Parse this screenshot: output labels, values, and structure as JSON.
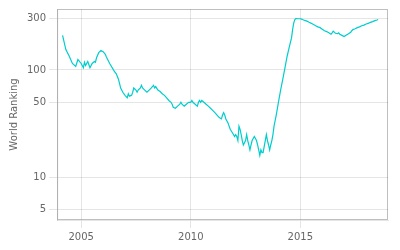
{
  "chart_data": {
    "type": "line",
    "ylabel": "World Ranking",
    "color": "#00CDCD",
    "log": "y",
    "grid": true,
    "xlim": [
      2003.9,
      2019.0
    ],
    "ylim": [
      4.0,
      370
    ],
    "xticks": [
      2005,
      2010,
      2015
    ],
    "yticks": [
      5,
      10,
      50,
      100,
      300
    ],
    "x": [
      2004.15,
      2004.3,
      2004.45,
      2004.6,
      2004.75,
      2004.85,
      2005.0,
      2005.1,
      2005.15,
      2005.2,
      2005.3,
      2005.4,
      2005.5,
      2005.6,
      2005.65,
      2005.7,
      2005.8,
      2005.9,
      2006.0,
      2006.1,
      2006.15,
      2006.3,
      2006.5,
      2006.6,
      2006.7,
      2006.8,
      2006.9,
      2007.0,
      2007.1,
      2007.15,
      2007.2,
      2007.3,
      2007.35,
      2007.4,
      2007.5,
      2007.55,
      2007.6,
      2007.7,
      2007.75,
      2007.8,
      2007.9,
      2008.0,
      2008.1,
      2008.2,
      2008.3,
      2008.35,
      2008.4,
      2008.5,
      2008.6,
      2008.7,
      2008.8,
      2008.9,
      2009.0,
      2009.1,
      2009.15,
      2009.2,
      2009.3,
      2009.4,
      2009.5,
      2009.55,
      2009.6,
      2009.7,
      2009.8,
      2009.9,
      2010.0,
      2010.05,
      2010.1,
      2010.2,
      2010.3,
      2010.35,
      2010.4,
      2010.45,
      2010.5,
      2010.6,
      2010.7,
      2010.8,
      2010.9,
      2011.0,
      2011.1,
      2011.2,
      2011.3,
      2011.4,
      2011.45,
      2011.5,
      2011.55,
      2011.6,
      2011.7,
      2011.75,
      2011.8,
      2011.9,
      2012.0,
      2012.05,
      2012.1,
      2012.15,
      2012.2,
      2012.25,
      2012.3,
      2012.35,
      2012.4,
      2012.5,
      2012.55,
      2012.6,
      2012.65,
      2012.7,
      2012.75,
      2012.8,
      2012.9,
      2013.0,
      2013.05,
      2013.1,
      2013.15,
      2013.2,
      2013.25,
      2013.3,
      2013.4,
      2013.45,
      2013.5,
      2013.55,
      2013.6,
      2013.65,
      2013.7,
      2013.75,
      2013.8,
      2013.9,
      2014.0,
      2014.1,
      2014.2,
      2014.3,
      2014.4,
      2014.5,
      2014.6,
      2014.65,
      2014.7,
      2014.75,
      2014.8,
      2014.85,
      2015.0,
      2015.05,
      2015.1,
      2015.15,
      2015.2,
      2015.3,
      2015.4,
      2015.5,
      2015.6,
      2015.7,
      2015.8,
      2015.9,
      2016.0,
      2016.1,
      2016.2,
      2016.3,
      2016.4,
      2016.45,
      2016.5,
      2016.55,
      2016.6,
      2016.7,
      2016.75,
      2016.8,
      2016.9,
      2017.0,
      2017.1,
      2017.2,
      2017.3,
      2017.35,
      2017.4,
      2017.5,
      2017.6,
      2017.7,
      2017.8,
      2017.9,
      2018.0,
      2018.1,
      2018.2,
      2018.3,
      2018.4,
      2018.5,
      2018.55
    ],
    "values": [
      210,
      155,
      135,
      115,
      108,
      125,
      115,
      105,
      118,
      110,
      120,
      105,
      115,
      120,
      118,
      130,
      145,
      152,
      148,
      140,
      132,
      115,
      98,
      92,
      82,
      68,
      62,
      58,
      55,
      60,
      57,
      58,
      62,
      68,
      65,
      62,
      65,
      68,
      72,
      68,
      65,
      62,
      65,
      68,
      72,
      68,
      70,
      65,
      63,
      60,
      58,
      55,
      52,
      50,
      48,
      45,
      44,
      46,
      48,
      50,
      48,
      46,
      48,
      50,
      50,
      52,
      50,
      48,
      46,
      50,
      52,
      50,
      52,
      50,
      48,
      46,
      44,
      42,
      40,
      38,
      36,
      35,
      38,
      40,
      38,
      35,
      32,
      30,
      28,
      26,
      24,
      25,
      24,
      22,
      30,
      28,
      25,
      22,
      20,
      22,
      25,
      22,
      20,
      18,
      20,
      22,
      24,
      22,
      20,
      18,
      16,
      18,
      17,
      17,
      22,
      25,
      22,
      20,
      18,
      20,
      22,
      25,
      30,
      38,
      50,
      65,
      82,
      105,
      135,
      165,
      200,
      240,
      275,
      295,
      302,
      300,
      300,
      298,
      295,
      292,
      290,
      285,
      278,
      272,
      265,
      258,
      252,
      248,
      240,
      232,
      228,
      222,
      215,
      222,
      230,
      225,
      220,
      218,
      222,
      215,
      210,
      205,
      212,
      218,
      225,
      232,
      238,
      242,
      248,
      252,
      258,
      262,
      268,
      272,
      278,
      282,
      288,
      292,
      295
    ]
  }
}
